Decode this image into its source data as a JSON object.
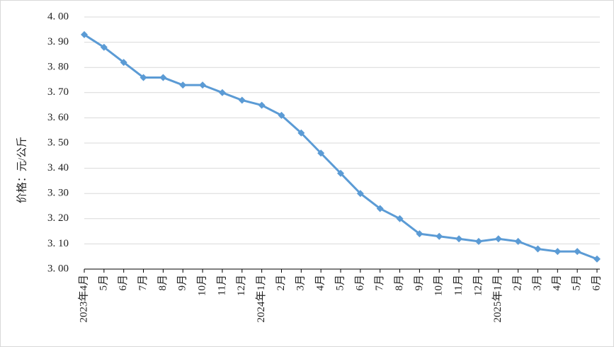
{
  "chart_data": {
    "type": "line",
    "y_label": "价格：元/公斤",
    "categories": [
      "2023年4月",
      "5月",
      "6月",
      "7月",
      "8月",
      "9月",
      "10月",
      "11月",
      "12月",
      "2024年1月",
      "2月",
      "3月",
      "4月",
      "5月",
      "6月",
      "7月",
      "8月",
      "9月",
      "10月",
      "11月",
      "12月",
      "2025年1月",
      "2月",
      "3月",
      "4月",
      "5月",
      "6月"
    ],
    "series": [
      {
        "name": "价格",
        "color": "#5b9bd5",
        "values": [
          3.93,
          3.88,
          3.82,
          3.76,
          3.76,
          3.73,
          3.73,
          3.7,
          3.67,
          3.65,
          3.61,
          3.54,
          3.46,
          3.38,
          3.3,
          3.24,
          3.2,
          3.14,
          3.13,
          3.12,
          3.11,
          3.12,
          3.11,
          3.08,
          3.07,
          3.07,
          3.04
        ]
      }
    ],
    "ylim": [
      3.0,
      4.0
    ],
    "yticks": [
      {
        "value": 3.0,
        "label": "3. 00"
      },
      {
        "value": 3.1,
        "label": "3. 10"
      },
      {
        "value": 3.2,
        "label": "3. 20"
      },
      {
        "value": 3.3,
        "label": "3. 30"
      },
      {
        "value": 3.4,
        "label": "3. 40"
      },
      {
        "value": 3.5,
        "label": "3. 50"
      },
      {
        "value": 3.6,
        "label": "3. 60"
      },
      {
        "value": 3.7,
        "label": "3. 70"
      },
      {
        "value": 3.8,
        "label": "3. 80"
      },
      {
        "value": 3.9,
        "label": "3. 90"
      },
      {
        "value": 4.0,
        "label": "4. 00"
      }
    ],
    "grid": true
  }
}
